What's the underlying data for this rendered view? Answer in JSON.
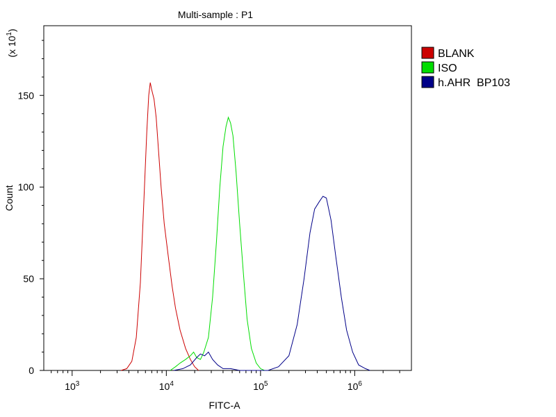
{
  "chart_data": {
    "type": "line",
    "title": "Multi-sample : P1",
    "xlabel": "FITC-A",
    "ylabel": "Count",
    "ylabel_multiplier": "(x 10",
    "ylabel_multiplier_exp": "1",
    "ylabel_multiplier_close": ")",
    "xscale": "log",
    "xlim": [
      500,
      4000000
    ],
    "ylim": [
      0,
      188
    ],
    "yticks": [
      0,
      50,
      100,
      150
    ],
    "xticks": [
      {
        "value": 1000,
        "base": "10",
        "exp": "3"
      },
      {
        "value": 10000,
        "base": "10",
        "exp": "4"
      },
      {
        "value": 100000,
        "base": "10",
        "exp": "5"
      },
      {
        "value": 1000000,
        "base": "10",
        "exp": "6"
      }
    ],
    "legend_position": "right",
    "series": [
      {
        "name": "BLANK",
        "color": "#cc0000",
        "points": [
          [
            3300,
            0
          ],
          [
            3800,
            1
          ],
          [
            4300,
            5
          ],
          [
            4800,
            18
          ],
          [
            5300,
            48
          ],
          [
            5800,
            95
          ],
          [
            6200,
            130
          ],
          [
            6500,
            150
          ],
          [
            6750,
            157
          ],
          [
            7000,
            153
          ],
          [
            7400,
            148
          ],
          [
            7800,
            138
          ],
          [
            8200,
            122
          ],
          [
            8800,
            100
          ],
          [
            9500,
            80
          ],
          [
            10500,
            62
          ],
          [
            11500,
            46
          ],
          [
            12500,
            34
          ],
          [
            14000,
            22
          ],
          [
            16000,
            12
          ],
          [
            18000,
            6
          ],
          [
            20000,
            2
          ],
          [
            22000,
            0
          ]
        ]
      },
      {
        "name": "ISO",
        "color": "#00dd00",
        "points": [
          [
            11000,
            0
          ],
          [
            12500,
            2
          ],
          [
            14000,
            4
          ],
          [
            16000,
            6
          ],
          [
            18000,
            8
          ],
          [
            19500,
            10
          ],
          [
            21000,
            7
          ],
          [
            23000,
            6
          ],
          [
            25000,
            10
          ],
          [
            28000,
            18
          ],
          [
            31000,
            40
          ],
          [
            34000,
            70
          ],
          [
            37000,
            100
          ],
          [
            40000,
            122
          ],
          [
            43000,
            133
          ],
          [
            45500,
            138
          ],
          [
            48000,
            135
          ],
          [
            51000,
            128
          ],
          [
            55000,
            108
          ],
          [
            60000,
            80
          ],
          [
            66000,
            52
          ],
          [
            72000,
            28
          ],
          [
            80000,
            12
          ],
          [
            90000,
            4
          ],
          [
            100000,
            1
          ],
          [
            110000,
            0
          ]
        ]
      },
      {
        "name": "h.AHR  BP103",
        "color": "#000088",
        "points": [
          [
            12000,
            0
          ],
          [
            15000,
            1
          ],
          [
            18000,
            3
          ],
          [
            21000,
            7
          ],
          [
            23000,
            9
          ],
          [
            25500,
            8
          ],
          [
            28000,
            10
          ],
          [
            31000,
            6
          ],
          [
            35000,
            3
          ],
          [
            40000,
            1
          ],
          [
            48000,
            1
          ],
          [
            60000,
            0
          ],
          [
            120000,
            0
          ],
          [
            155000,
            2
          ],
          [
            200000,
            8
          ],
          [
            245000,
            25
          ],
          [
            290000,
            50
          ],
          [
            335000,
            75
          ],
          [
            375000,
            88
          ],
          [
            420000,
            92
          ],
          [
            460000,
            95
          ],
          [
            500000,
            94
          ],
          [
            560000,
            82
          ],
          [
            630000,
            62
          ],
          [
            720000,
            40
          ],
          [
            820000,
            22
          ],
          [
            950000,
            10
          ],
          [
            1100000,
            3
          ],
          [
            1300000,
            1
          ],
          [
            1450000,
            0
          ]
        ]
      }
    ]
  }
}
